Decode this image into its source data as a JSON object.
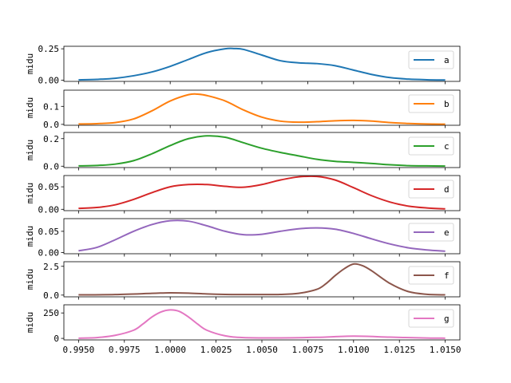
{
  "chart_data": {
    "type": "line",
    "ylabel": "midu",
    "xlim": [
      0.9942,
      1.0158
    ],
    "x_ticks": [
      0.995,
      0.9975,
      1.0,
      1.0025,
      1.005,
      1.0075,
      1.01,
      1.0125,
      1.015
    ],
    "x_tick_labels": [
      "0.9950",
      "0.9975",
      "1.0000",
      "1.0025",
      "1.0050",
      "1.0075",
      "1.0100",
      "1.0125",
      "1.0150"
    ],
    "legend_position": "right",
    "panels": [
      {
        "name": "a",
        "color": "#1f77b4",
        "ylim": [
          -0.01,
          0.27
        ],
        "y_ticks": [
          0.0,
          0.25
        ],
        "y_tick_labels": [
          "0.00",
          "0.25"
        ],
        "x": [
          0.995,
          0.996,
          0.997,
          0.998,
          0.999,
          1.0,
          1.001,
          1.002,
          1.003,
          1.0035,
          1.004,
          1.005,
          1.006,
          1.007,
          1.008,
          1.009,
          1.01,
          1.011,
          1.012,
          1.013,
          1.014,
          1.015
        ],
        "y": [
          0.002,
          0.006,
          0.015,
          0.035,
          0.065,
          0.11,
          0.165,
          0.22,
          0.25,
          0.252,
          0.245,
          0.2,
          0.155,
          0.138,
          0.132,
          0.115,
          0.08,
          0.045,
          0.02,
          0.008,
          0.003,
          0.001
        ]
      },
      {
        "name": "b",
        "color": "#ff7f0e",
        "ylim": [
          -0.005,
          0.19
        ],
        "y_ticks": [
          0.0,
          0.1
        ],
        "y_tick_labels": [
          "0.0",
          "0.1"
        ],
        "x": [
          0.995,
          0.996,
          0.997,
          0.998,
          0.999,
          1.0,
          1.001,
          1.0015,
          1.002,
          1.003,
          1.004,
          1.005,
          1.006,
          1.007,
          1.008,
          1.009,
          1.01,
          1.011,
          1.012,
          1.013,
          1.014,
          1.015
        ],
        "y": [
          0.002,
          0.004,
          0.01,
          0.03,
          0.075,
          0.13,
          0.165,
          0.168,
          0.16,
          0.13,
          0.08,
          0.04,
          0.018,
          0.012,
          0.015,
          0.02,
          0.022,
          0.018,
          0.01,
          0.005,
          0.002,
          0.001
        ]
      },
      {
        "name": "c",
        "color": "#2ca02c",
        "ylim": [
          -0.01,
          0.245
        ],
        "y_ticks": [
          0.0,
          0.2
        ],
        "y_tick_labels": [
          "0.0",
          "0.2"
        ],
        "x": [
          0.995,
          0.996,
          0.997,
          0.998,
          0.999,
          1.0,
          1.001,
          1.002,
          1.003,
          1.004,
          1.005,
          1.006,
          1.007,
          1.008,
          1.009,
          1.01,
          1.011,
          1.012,
          1.013,
          1.014,
          1.015
        ],
        "y": [
          0.002,
          0.005,
          0.015,
          0.04,
          0.09,
          0.15,
          0.2,
          0.22,
          0.21,
          0.17,
          0.13,
          0.1,
          0.075,
          0.05,
          0.035,
          0.028,
          0.02,
          0.01,
          0.004,
          0.002,
          0.001
        ]
      },
      {
        "name": "d",
        "color": "#d62728",
        "ylim": [
          -0.003,
          0.075
        ],
        "y_ticks": [
          0.0,
          0.05
        ],
        "y_tick_labels": [
          "0.00",
          "0.05"
        ],
        "x": [
          0.995,
          0.996,
          0.997,
          0.998,
          0.999,
          1.0,
          1.001,
          1.002,
          1.003,
          1.004,
          1.005,
          1.006,
          1.007,
          1.008,
          1.009,
          1.01,
          1.011,
          1.012,
          1.013,
          1.014,
          1.015
        ],
        "y": [
          0.002,
          0.004,
          0.01,
          0.022,
          0.037,
          0.05,
          0.055,
          0.055,
          0.051,
          0.049,
          0.055,
          0.065,
          0.072,
          0.073,
          0.065,
          0.048,
          0.03,
          0.016,
          0.007,
          0.003,
          0.001
        ]
      },
      {
        "name": "e",
        "color": "#9467bd",
        "ylim": [
          -0.003,
          0.08
        ],
        "y_ticks": [
          0.0,
          0.05
        ],
        "y_tick_labels": [
          "0.00",
          "0.05"
        ],
        "x": [
          0.995,
          0.996,
          0.997,
          0.998,
          0.999,
          1.0,
          1.001,
          1.002,
          1.003,
          1.004,
          1.005,
          1.006,
          1.007,
          1.008,
          1.009,
          1.01,
          1.011,
          1.012,
          1.013,
          1.014,
          1.015
        ],
        "y": [
          0.004,
          0.012,
          0.03,
          0.05,
          0.066,
          0.075,
          0.074,
          0.063,
          0.05,
          0.042,
          0.043,
          0.05,
          0.056,
          0.058,
          0.055,
          0.045,
          0.032,
          0.02,
          0.011,
          0.006,
          0.003
        ]
      },
      {
        "name": "f",
        "color": "#8c564b",
        "ylim": [
          -0.15,
          2.9
        ],
        "y_ticks": [
          0.0,
          2.5
        ],
        "y_tick_labels": [
          "0.0",
          "2.5"
        ],
        "x": [
          0.995,
          0.997,
          0.999,
          1.0,
          1.001,
          1.002,
          1.003,
          1.004,
          1.005,
          1.006,
          1.007,
          1.008,
          1.0085,
          1.009,
          1.0095,
          1.01,
          1.0105,
          1.011,
          1.012,
          1.013,
          1.014,
          1.015
        ],
        "y": [
          0.02,
          0.05,
          0.15,
          0.2,
          0.17,
          0.1,
          0.06,
          0.05,
          0.05,
          0.06,
          0.15,
          0.5,
          1.0,
          1.7,
          2.3,
          2.7,
          2.55,
          2.1,
          1.0,
          0.3,
          0.07,
          0.02
        ]
      },
      {
        "name": "g",
        "color": "#e377c2",
        "ylim": [
          -15,
          330
        ],
        "y_ticks": [
          0,
          250
        ],
        "y_tick_labels": [
          "0",
          "250"
        ],
        "x": [
          0.995,
          0.996,
          0.997,
          0.998,
          0.9985,
          0.999,
          0.9995,
          1.0,
          1.0005,
          1.001,
          1.0015,
          1.002,
          1.003,
          1.004,
          1.006,
          1.008,
          1.01,
          1.012,
          1.014,
          1.015
        ],
        "y": [
          2,
          8,
          30,
          80,
          140,
          210,
          260,
          280,
          265,
          210,
          140,
          80,
          25,
          8,
          5,
          10,
          22,
          12,
          4,
          2
        ]
      }
    ]
  }
}
